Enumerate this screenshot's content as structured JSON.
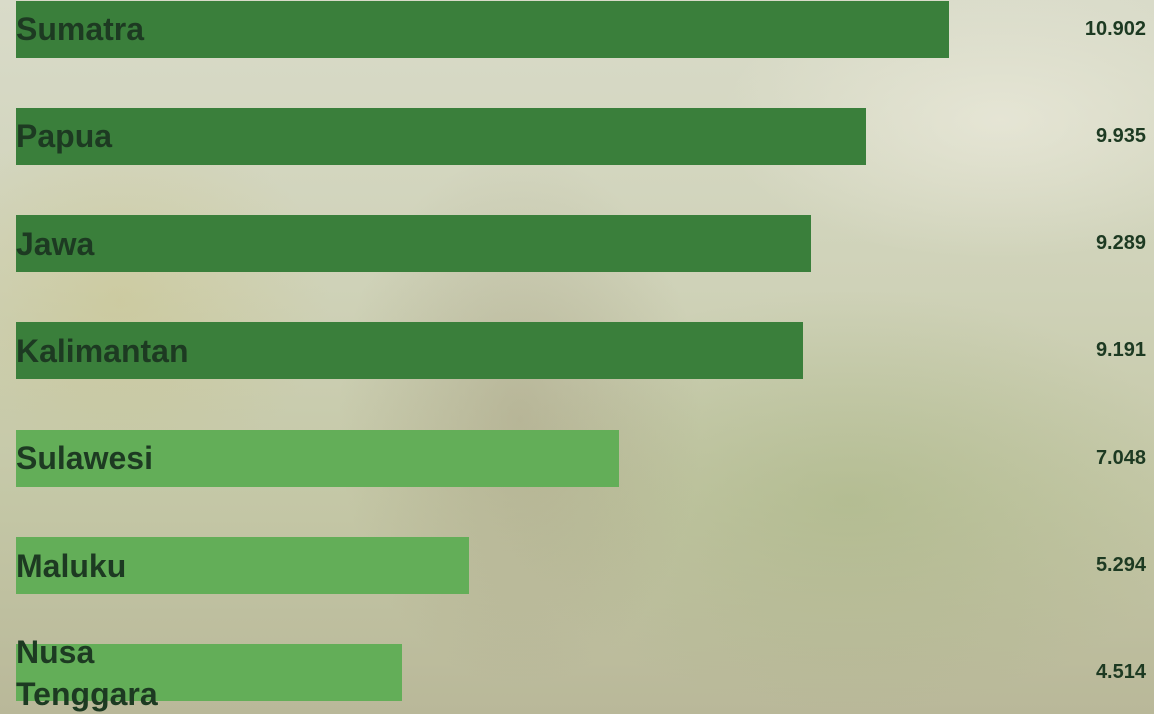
{
  "chart_data": {
    "type": "bar",
    "orientation": "horizontal",
    "categories": [
      "Sumatra",
      "Papua",
      "Jawa",
      "Kalimantan",
      "Sulawesi",
      "Maluku",
      "Nusa Tenggara"
    ],
    "values": [
      10.902,
      9.935,
      9.289,
      9.191,
      7.048,
      5.294,
      4.514
    ],
    "colors": [
      "#3a7f3b",
      "#3a7f3b",
      "#3a7f3b",
      "#3a7f3b",
      "#63ae58",
      "#63ae58",
      "#63ae58"
    ]
  }
}
